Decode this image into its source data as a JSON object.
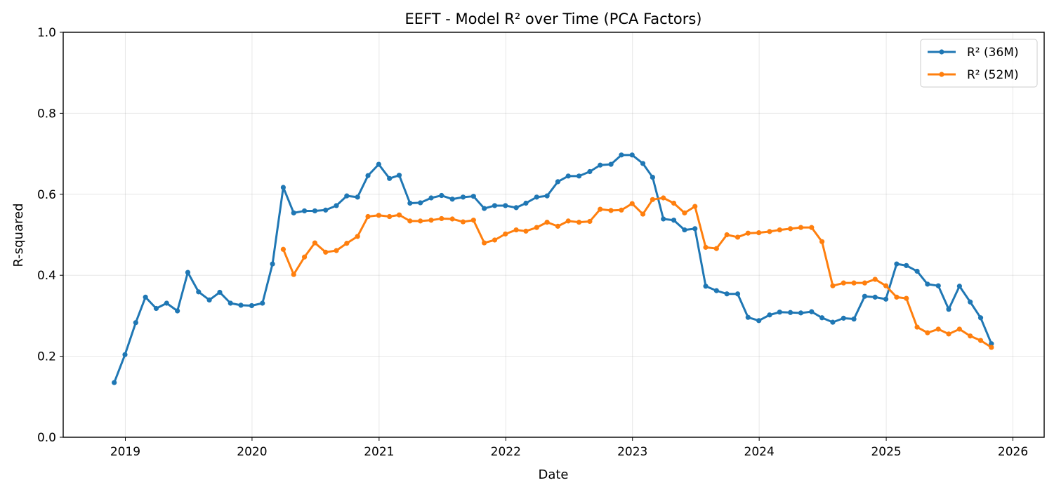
{
  "chart_data": {
    "type": "line",
    "title": "EEFT - Model R² over Time (PCA Factors)",
    "xlabel": "Date",
    "ylabel": "R-squared",
    "xlim": [
      "2018-07-06",
      "2026-04-01"
    ],
    "ylim": [
      0,
      1
    ],
    "x_ticks": [
      "2019-01-01",
      "2020-01-01",
      "2021-01-01",
      "2022-01-01",
      "2023-01-01",
      "2024-01-01",
      "2025-01-01",
      "2026-01-01"
    ],
    "x_tick_labels": [
      "2019",
      "2020",
      "2021",
      "2022",
      "2023",
      "2024",
      "2025",
      "2026"
    ],
    "y_ticks": [
      0,
      0.2,
      0.4,
      0.6,
      0.8,
      1.0
    ],
    "y_tick_labels": [
      "0.0",
      "0.2",
      "0.4",
      "0.6",
      "0.8",
      "1.0"
    ],
    "grid": true,
    "legend_position": "top-right",
    "series": [
      {
        "name": "R² (36M)",
        "color": "#1f77b4",
        "x": [
          "2018-11-30",
          "2018-12-31",
          "2019-01-31",
          "2019-02-28",
          "2019-03-31",
          "2019-04-30",
          "2019-05-31",
          "2019-06-30",
          "2019-07-31",
          "2019-08-31",
          "2019-09-30",
          "2019-10-31",
          "2019-11-30",
          "2019-12-31",
          "2020-01-31",
          "2020-02-29",
          "2020-03-31",
          "2020-04-30",
          "2020-05-31",
          "2020-06-30",
          "2020-07-31",
          "2020-08-31",
          "2020-09-30",
          "2020-10-31",
          "2020-11-30",
          "2020-12-31",
          "2021-01-31",
          "2021-02-28",
          "2021-03-31",
          "2021-04-30",
          "2021-05-31",
          "2021-06-30",
          "2021-07-31",
          "2021-08-31",
          "2021-09-30",
          "2021-10-31",
          "2021-11-30",
          "2021-12-31",
          "2022-01-31",
          "2022-02-28",
          "2022-03-31",
          "2022-04-30",
          "2022-05-31",
          "2022-06-30",
          "2022-07-31",
          "2022-08-31",
          "2022-09-30",
          "2022-10-31",
          "2022-11-30",
          "2022-12-31",
          "2023-01-31",
          "2023-02-28",
          "2023-03-31",
          "2023-04-30",
          "2023-05-31",
          "2023-06-30",
          "2023-07-31",
          "2023-08-31",
          "2023-09-30",
          "2023-10-31",
          "2023-11-30",
          "2023-12-31",
          "2024-01-31",
          "2024-02-29",
          "2024-03-31",
          "2024-04-30",
          "2024-05-31",
          "2024-06-30",
          "2024-07-31",
          "2024-08-31",
          "2024-09-30",
          "2024-10-31",
          "2024-11-30",
          "2024-12-31",
          "2025-01-31",
          "2025-02-28",
          "2025-03-31",
          "2025-04-30",
          "2025-05-31",
          "2025-06-30",
          "2025-07-31",
          "2025-08-31",
          "2025-09-30",
          "2025-10-31"
        ],
        "y": [
          0.135,
          0.204,
          0.283,
          0.346,
          0.318,
          0.331,
          0.312,
          0.407,
          0.359,
          0.339,
          0.358,
          0.331,
          0.326,
          0.325,
          0.331,
          0.428,
          0.617,
          0.554,
          0.559,
          0.559,
          0.561,
          0.572,
          0.596,
          0.593,
          0.646,
          0.674,
          0.639,
          0.647,
          0.578,
          0.579,
          0.591,
          0.597,
          0.588,
          0.593,
          0.595,
          0.565,
          0.572,
          0.572,
          0.567,
          0.578,
          0.593,
          0.596,
          0.631,
          0.645,
          0.645,
          0.656,
          0.672,
          0.674,
          0.697,
          0.697,
          0.676,
          0.642,
          0.539,
          0.536,
          0.512,
          0.515,
          0.373,
          0.362,
          0.354,
          0.354,
          0.296,
          0.288,
          0.302,
          0.309,
          0.308,
          0.307,
          0.31,
          0.295,
          0.284,
          0.294,
          0.292,
          0.348,
          0.346,
          0.341,
          0.428,
          0.424,
          0.41,
          0.378,
          0.374,
          0.316,
          0.373,
          0.334,
          0.295,
          0.231
        ]
      },
      {
        "name": "R² (52M)",
        "color": "#ff7f0e",
        "x": [
          "2020-03-31",
          "2020-04-30",
          "2020-05-31",
          "2020-06-30",
          "2020-07-31",
          "2020-08-31",
          "2020-09-30",
          "2020-10-31",
          "2020-11-30",
          "2020-12-31",
          "2021-01-31",
          "2021-02-28",
          "2021-03-31",
          "2021-04-30",
          "2021-05-31",
          "2021-06-30",
          "2021-07-31",
          "2021-08-31",
          "2021-09-30",
          "2021-10-31",
          "2021-11-30",
          "2021-12-31",
          "2022-01-31",
          "2022-02-28",
          "2022-03-31",
          "2022-04-30",
          "2022-05-31",
          "2022-06-30",
          "2022-07-31",
          "2022-08-31",
          "2022-09-30",
          "2022-10-31",
          "2022-11-30",
          "2022-12-31",
          "2023-01-31",
          "2023-02-28",
          "2023-03-31",
          "2023-04-30",
          "2023-05-31",
          "2023-06-30",
          "2023-07-31",
          "2023-08-31",
          "2023-09-30",
          "2023-10-31",
          "2023-11-30",
          "2023-12-31",
          "2024-01-31",
          "2024-02-29",
          "2024-03-31",
          "2024-04-30",
          "2024-05-31",
          "2024-06-30",
          "2024-07-31",
          "2024-08-31",
          "2024-09-30",
          "2024-10-31",
          "2024-11-30",
          "2024-12-31",
          "2025-01-31",
          "2025-02-28",
          "2025-03-31",
          "2025-04-30",
          "2025-05-31",
          "2025-06-30",
          "2025-07-31",
          "2025-08-31",
          "2025-09-30",
          "2025-10-31"
        ],
        "y": [
          0.464,
          0.402,
          0.445,
          0.48,
          0.457,
          0.461,
          0.479,
          0.496,
          0.545,
          0.548,
          0.545,
          0.549,
          0.534,
          0.534,
          0.536,
          0.54,
          0.539,
          0.532,
          0.536,
          0.48,
          0.487,
          0.502,
          0.512,
          0.509,
          0.518,
          0.531,
          0.521,
          0.534,
          0.531,
          0.533,
          0.563,
          0.56,
          0.561,
          0.577,
          0.551,
          0.587,
          0.591,
          0.578,
          0.554,
          0.57,
          0.469,
          0.466,
          0.5,
          0.494,
          0.504,
          0.505,
          0.508,
          0.512,
          0.515,
          0.518,
          0.518,
          0.483,
          0.374,
          0.381,
          0.381,
          0.381,
          0.39,
          0.374,
          0.346,
          0.343,
          0.272,
          0.258,
          0.267,
          0.255,
          0.267,
          0.25,
          0.239,
          0.222
        ]
      }
    ]
  }
}
